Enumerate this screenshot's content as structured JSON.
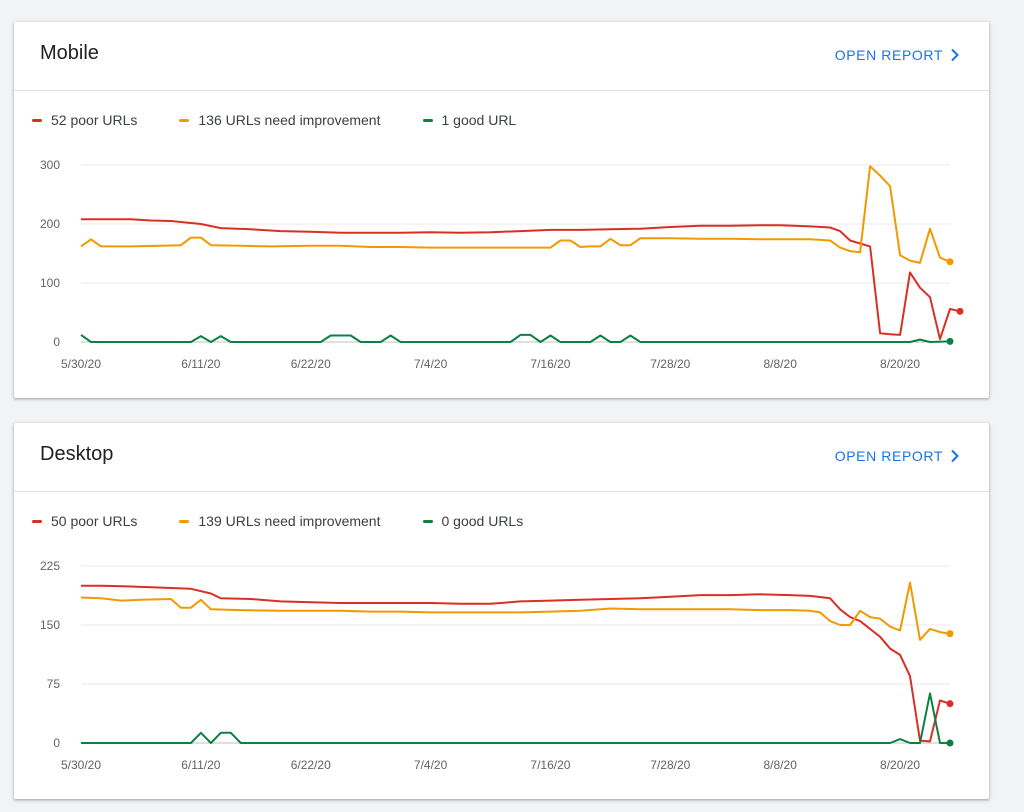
{
  "colors": {
    "poor": "#d93025",
    "needs_improvement": "#f29900",
    "good": "#0d8043",
    "link": "#1a73e8"
  },
  "cards": [
    {
      "title": "Mobile",
      "open_report": "OPEN REPORT",
      "legend": {
        "poor": "52 poor URLs",
        "needs_improvement": "136 URLs need improvement",
        "good": "1 good URL"
      }
    },
    {
      "title": "Desktop",
      "open_report": "OPEN REPORT",
      "legend": {
        "poor": "50 poor URLs",
        "needs_improvement": "139 URLs need improvement",
        "good": "0 good URLs"
      }
    }
  ],
  "chart_data": [
    {
      "type": "line",
      "x_start": "5/30/20",
      "x_end": "8/25/20",
      "x_tick_labels": [
        "5/30/20",
        "6/11/20",
        "6/22/20",
        "7/4/20",
        "7/16/20",
        "7/28/20",
        "8/8/20",
        "8/20/20"
      ],
      "y_ticks": [
        0,
        100,
        200,
        300
      ],
      "ylim": [
        0,
        300
      ],
      "grid": true,
      "series": [
        {
          "name": "52 poor URLs",
          "key": "poor",
          "points": [
            [
              "5/30/20",
              208
            ],
            [
              "6/1/20",
              208
            ],
            [
              "6/4/20",
              208
            ],
            [
              "6/6/20",
              206
            ],
            [
              "6/8/20",
              205
            ],
            [
              "6/11/20",
              200
            ],
            [
              "6/13/20",
              193
            ],
            [
              "6/16/20",
              191
            ],
            [
              "6/19/20",
              188
            ],
            [
              "6/22/20",
              187
            ],
            [
              "6/25/20",
              185
            ],
            [
              "6/28/20",
              185
            ],
            [
              "7/1/20",
              185
            ],
            [
              "7/4/20",
              186
            ],
            [
              "7/7/20",
              185
            ],
            [
              "7/10/20",
              186
            ],
            [
              "7/13/20",
              188
            ],
            [
              "7/16/20",
              190
            ],
            [
              "7/19/20",
              190
            ],
            [
              "7/22/20",
              191
            ],
            [
              "7/25/20",
              192
            ],
            [
              "7/28/20",
              195
            ],
            [
              "7/31/20",
              197
            ],
            [
              "8/3/20",
              197
            ],
            [
              "8/6/20",
              198
            ],
            [
              "8/8/20",
              198
            ],
            [
              "8/11/20",
              196
            ],
            [
              "8/13/20",
              194
            ],
            [
              "8/14/20",
              188
            ],
            [
              "8/15/20",
              172
            ],
            [
              "8/16/20",
              167
            ],
            [
              "8/17/20",
              162
            ],
            [
              "8/18/20",
              15
            ],
            [
              "8/19/20",
              13
            ],
            [
              "8/20/20",
              12
            ],
            [
              "8/21/20",
              118
            ],
            [
              "8/22/20",
              92
            ],
            [
              "8/23/20",
              76
            ],
            [
              "8/24/20",
              5
            ],
            [
              "8/25/20",
              56
            ],
            [
              "8/26/20",
              52
            ]
          ]
        },
        {
          "name": "136 URLs need improvement",
          "key": "needs_improvement",
          "points": [
            [
              "5/30/20",
              162
            ],
            [
              "5/31/20",
              174
            ],
            [
              "6/1/20",
              162
            ],
            [
              "6/4/20",
              162
            ],
            [
              "6/7/20",
              163
            ],
            [
              "6/9/20",
              164
            ],
            [
              "6/10/20",
              177
            ],
            [
              "6/11/20",
              177
            ],
            [
              "6/12/20",
              164
            ],
            [
              "6/15/20",
              163
            ],
            [
              "6/18/20",
              162
            ],
            [
              "6/22/20",
              163
            ],
            [
              "6/25/20",
              163
            ],
            [
              "6/28/20",
              161
            ],
            [
              "7/1/20",
              161
            ],
            [
              "7/4/20",
              160
            ],
            [
              "7/7/20",
              160
            ],
            [
              "7/10/20",
              160
            ],
            [
              "7/13/20",
              160
            ],
            [
              "7/16/20",
              160
            ],
            [
              "7/17/20",
              172
            ],
            [
              "7/18/20",
              172
            ],
            [
              "7/19/20",
              161
            ],
            [
              "7/20/20",
              162
            ],
            [
              "7/21/20",
              162
            ],
            [
              "7/22/20",
              175
            ],
            [
              "7/23/20",
              164
            ],
            [
              "7/24/20",
              164
            ],
            [
              "7/25/20",
              176
            ],
            [
              "7/28/20",
              176
            ],
            [
              "7/31/20",
              175
            ],
            [
              "8/3/20",
              175
            ],
            [
              "8/6/20",
              174
            ],
            [
              "8/9/20",
              174
            ],
            [
              "8/11/20",
              174
            ],
            [
              "8/12/20",
              173
            ],
            [
              "8/13/20",
              172
            ],
            [
              "8/14/20",
              160
            ],
            [
              "8/15/20",
              154
            ],
            [
              "8/16/20",
              152
            ],
            [
              "8/17/20",
              298
            ],
            [
              "8/18/20",
              282
            ],
            [
              "8/19/20",
              264
            ],
            [
              "8/20/20",
              147
            ],
            [
              "8/21/20",
              138
            ],
            [
              "8/22/20",
              134
            ],
            [
              "8/23/20",
              192
            ],
            [
              "8/24/20",
              143
            ],
            [
              "8/25/20",
              136
            ]
          ]
        },
        {
          "name": "1 good URL",
          "key": "good",
          "points": [
            [
              "5/30/20",
              12
            ],
            [
              "5/31/20",
              0
            ],
            [
              "6/10/20",
              0
            ],
            [
              "6/11/20",
              10
            ],
            [
              "6/12/20",
              0
            ],
            [
              "6/13/20",
              10
            ],
            [
              "6/14/20",
              0
            ],
            [
              "6/23/20",
              0
            ],
            [
              "6/24/20",
              11
            ],
            [
              "6/25/20",
              11
            ],
            [
              "6/26/20",
              11
            ],
            [
              "6/27/20",
              0
            ],
            [
              "6/29/20",
              0
            ],
            [
              "6/30/20",
              11
            ],
            [
              "7/1/20",
              0
            ],
            [
              "7/12/20",
              0
            ],
            [
              "7/13/20",
              12
            ],
            [
              "7/14/20",
              12
            ],
            [
              "7/15/20",
              0
            ],
            [
              "7/16/20",
              11
            ],
            [
              "7/17/20",
              0
            ],
            [
              "7/20/20",
              0
            ],
            [
              "7/21/20",
              11
            ],
            [
              "7/22/20",
              0
            ],
            [
              "7/23/20",
              0
            ],
            [
              "7/24/20",
              11
            ],
            [
              "7/25/20",
              0
            ],
            [
              "8/21/20",
              0
            ],
            [
              "8/22/20",
              4
            ],
            [
              "8/23/20",
              0
            ],
            [
              "8/25/20",
              1
            ]
          ]
        }
      ]
    },
    {
      "type": "line",
      "x_start": "5/30/20",
      "x_end": "8/25/20",
      "x_tick_labels": [
        "5/30/20",
        "6/11/20",
        "6/22/20",
        "7/4/20",
        "7/16/20",
        "7/28/20",
        "8/8/20",
        "8/20/20"
      ],
      "y_ticks": [
        0,
        75,
        150,
        225
      ],
      "ylim": [
        0,
        225
      ],
      "grid": true,
      "series": [
        {
          "name": "50 poor URLs",
          "key": "poor",
          "points": [
            [
              "5/30/20",
              200
            ],
            [
              "6/1/20",
              200
            ],
            [
              "6/4/20",
              199
            ],
            [
              "6/6/20",
              198
            ],
            [
              "6/8/20",
              197
            ],
            [
              "6/10/20",
              196
            ],
            [
              "6/12/20",
              190
            ],
            [
              "6/13/20",
              184
            ],
            [
              "6/16/20",
              183
            ],
            [
              "6/19/20",
              180
            ],
            [
              "6/22/20",
              179
            ],
            [
              "6/25/20",
              178
            ],
            [
              "6/28/20",
              178
            ],
            [
              "7/1/20",
              178
            ],
            [
              "7/4/20",
              178
            ],
            [
              "7/7/20",
              177
            ],
            [
              "7/10/20",
              177
            ],
            [
              "7/13/20",
              180
            ],
            [
              "7/16/20",
              181
            ],
            [
              "7/19/20",
              182
            ],
            [
              "7/22/20",
              183
            ],
            [
              "7/25/20",
              184
            ],
            [
              "7/28/20",
              186
            ],
            [
              "7/31/20",
              188
            ],
            [
              "8/3/20",
              188
            ],
            [
              "8/6/20",
              189
            ],
            [
              "8/9/20",
              188
            ],
            [
              "8/11/20",
              187
            ],
            [
              "8/13/20",
              184
            ],
            [
              "8/14/20",
              170
            ],
            [
              "8/15/20",
              160
            ],
            [
              "8/16/20",
              155
            ],
            [
              "8/17/20",
              145
            ],
            [
              "8/18/20",
              135
            ],
            [
              "8/19/20",
              120
            ],
            [
              "8/20/20",
              112
            ],
            [
              "8/21/20",
              85
            ],
            [
              "8/22/20",
              3
            ],
            [
              "8/23/20",
              2
            ],
            [
              "8/24/20",
              54
            ],
            [
              "8/25/20",
              50
            ]
          ]
        },
        {
          "name": "139 URLs need improvement",
          "key": "needs_improvement",
          "points": [
            [
              "5/30/20",
              185
            ],
            [
              "6/1/20",
              184
            ],
            [
              "6/3/20",
              181
            ],
            [
              "6/5/20",
              182
            ],
            [
              "6/8/20",
              183
            ],
            [
              "6/9/20",
              172
            ],
            [
              "6/10/20",
              172
            ],
            [
              "6/11/20",
              182
            ],
            [
              "6/12/20",
              170
            ],
            [
              "6/15/20",
              169
            ],
            [
              "6/19/20",
              168
            ],
            [
              "6/22/20",
              168
            ],
            [
              "6/25/20",
              168
            ],
            [
              "6/28/20",
              167
            ],
            [
              "7/1/20",
              167
            ],
            [
              "7/4/20",
              166
            ],
            [
              "7/7/20",
              166
            ],
            [
              "7/10/20",
              166
            ],
            [
              "7/13/20",
              166
            ],
            [
              "7/16/20",
              167
            ],
            [
              "7/19/20",
              168
            ],
            [
              "7/22/20",
              171
            ],
            [
              "7/25/20",
              170
            ],
            [
              "7/28/20",
              170
            ],
            [
              "7/31/20",
              170
            ],
            [
              "8/3/20",
              170
            ],
            [
              "8/6/20",
              169
            ],
            [
              "8/9/20",
              169
            ],
            [
              "8/11/20",
              168
            ],
            [
              "8/12/20",
              166
            ],
            [
              "8/13/20",
              155
            ],
            [
              "8/14/20",
              150
            ],
            [
              "8/15/20",
              150
            ],
            [
              "8/16/20",
              168
            ],
            [
              "8/17/20",
              160
            ],
            [
              "8/18/20",
              158
            ],
            [
              "8/19/20",
              148
            ],
            [
              "8/20/20",
              143
            ],
            [
              "8/21/20",
              204
            ],
            [
              "8/22/20",
              131
            ],
            [
              "8/23/20",
              145
            ],
            [
              "8/24/20",
              141
            ],
            [
              "8/25/20",
              139
            ]
          ]
        },
        {
          "name": "0 good URLs",
          "key": "good",
          "points": [
            [
              "5/30/20",
              0
            ],
            [
              "6/10/20",
              0
            ],
            [
              "6/11/20",
              13
            ],
            [
              "6/12/20",
              0
            ],
            [
              "6/13/20",
              13
            ],
            [
              "6/14/20",
              13
            ],
            [
              "6/15/20",
              0
            ],
            [
              "8/19/20",
              0
            ],
            [
              "8/20/20",
              5
            ],
            [
              "8/21/20",
              0
            ],
            [
              "8/22/20",
              0
            ],
            [
              "8/23/20",
              63
            ],
            [
              "8/24/20",
              0
            ],
            [
              "8/25/20",
              0
            ]
          ]
        }
      ]
    }
  ]
}
